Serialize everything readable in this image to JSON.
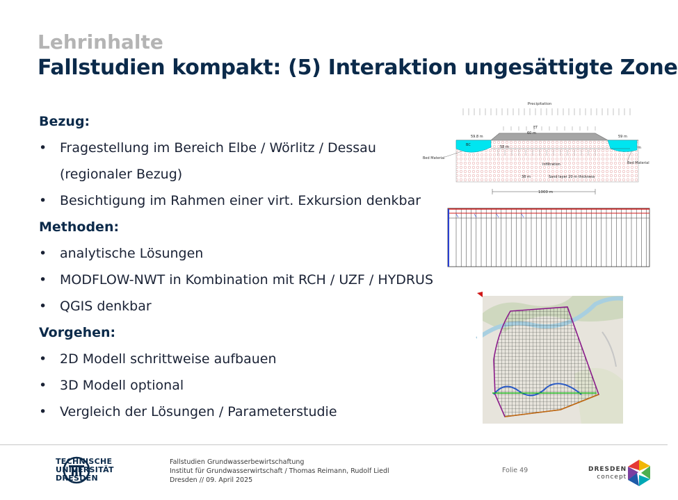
{
  "slide": {
    "kicker": "Lehrinhalte",
    "title": "Fallstudien kompakt: (5) Interaktion ungesättigte Zone"
  },
  "content": {
    "bezug_heading": "Bezug:",
    "bezug_items": [
      "Fragestellung im Bereich Elbe / Wörlitz / Dessau",
      "(regionaler Bezug)",
      "Besichtigung im Rahmen einer virt. Exkursion denkbar"
    ],
    "methoden_heading": "Methoden:",
    "methoden_items": [
      "analytische Lösungen",
      "MODFLOW-NWT  in Kombination mit RCH / UZF / HYDRUS",
      "QGIS denkbar"
    ],
    "vorgehen_heading": "Vorgehen:",
    "vorgehen_items": [
      "2D Modell schrittweise  aufbauen",
      "3D Modell optional",
      "Vergleich der Lösungen / Parameterstudie"
    ]
  },
  "figure_cross_section": {
    "precipitation": "Precipitation",
    "et": "ET",
    "left_head": "59.8 m",
    "top_head": "60 m",
    "right_head": "59 m",
    "bc": "BC",
    "inner_level": "58 m",
    "right_m": "m",
    "bed_left": "Bed Material",
    "bed_right": "Bed Material",
    "infiltration": "Infiltration",
    "depth": "38 m",
    "sand_layer": "Sand layer 20 m thickness",
    "width": "1000 m"
  },
  "footer": {
    "tud_line1": "TECHNISCHE",
    "tud_line2": "UNIVERSITÄT",
    "tud_line3": "DRESDEN",
    "course": "Fallstudien Grundwasserbewirtschaftung",
    "institute": "Institut für Grundwasserwirtschaft / Thomas Reimann, Rudolf Liedl",
    "place_date": "Dresden // 09. April 2025",
    "folie": "Folie 49",
    "dc_line1": "DRESDEN",
    "dc_line2": "concept"
  },
  "colors": {
    "title": "#0b2a4a",
    "kicker": "#b4b4b4",
    "water": "#00e5f0",
    "grid_red": "#d01818",
    "grid_blue": "#2a3fd0"
  }
}
